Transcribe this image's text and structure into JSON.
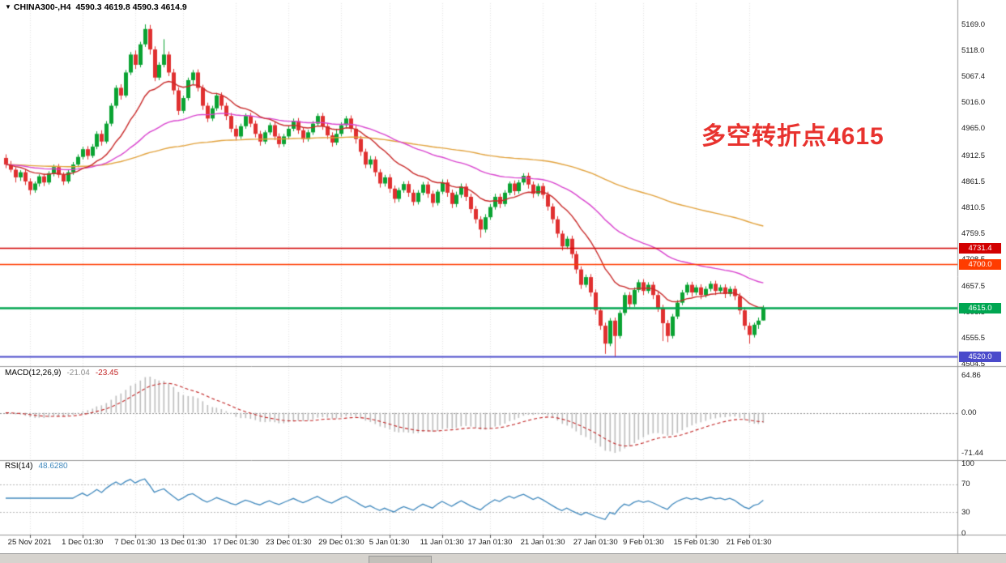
{
  "header": {
    "collapse_icon": "▼",
    "symbol": "CHINA300-,H4",
    "ohlc": "4590.3 4619.8 4590.3 4614.9"
  },
  "annotation": {
    "text": "多空转折点4615",
    "color": "#e8322e"
  },
  "panels": {
    "macd": {
      "name": "MACD(12,26,9)",
      "main_value": "-21.04",
      "signal_value": "-23.45"
    },
    "rsi": {
      "name": "RSI(14)",
      "value": "48.6280"
    }
  },
  "chart_data": {
    "type": "candlestick",
    "title": "CHINA300- H4",
    "timeframe": "H4",
    "price_axis_labels": [
      "5169.0",
      "5118.0",
      "5067.4",
      "5016.0",
      "4965.0",
      "4912.5",
      "4861.5",
      "4810.5",
      "4759.5",
      "4708.5",
      "4657.5",
      "4606.5",
      "4555.5",
      "4504.5"
    ],
    "price_range": [
      4501,
      5204
    ],
    "colors": {
      "up": "#0aa332",
      "down": "#e03030",
      "ma_fast": "#c92a2a",
      "ma_mid": "#d944cf",
      "ma_slow": "#e2a23c",
      "grid": "#e2e2e2",
      "separator": "#979797",
      "macd_hist": "#bdbdbd",
      "macd_signal": "#c22525",
      "rsi_line": "#3f88bd"
    },
    "hlines": [
      {
        "price": 4731.4,
        "label": "4731.4",
        "color": "#d20000",
        "width": 1.4
      },
      {
        "price": 4700.0,
        "label": "4700.0",
        "color": "#ff3c00",
        "width": 1.4
      },
      {
        "price": 4615.0,
        "label": "4615.0",
        "color": "#00a651",
        "width": 2.4
      },
      {
        "price": 4520.0,
        "label": "4520.0",
        "color": "#4a4acb",
        "width": 2.0
      }
    ],
    "moving_averages": [
      {
        "period": 140,
        "color_key": "ma_slow"
      },
      {
        "period": 48,
        "color_key": "ma_mid"
      },
      {
        "period": 16,
        "color_key": "ma_fast"
      }
    ],
    "macd": {
      "fast": 12,
      "slow": 26,
      "signal": 9,
      "display_main": -21.04,
      "display_signal": -23.45,
      "range": [
        -80,
        76
      ],
      "axis": [
        {
          "t": "64.86",
          "v": 64.86
        },
        {
          "t": "0.00",
          "v": 0
        },
        {
          "t": "-71.44",
          "v": -71.44
        }
      ]
    },
    "rsi": {
      "period": 14,
      "display_value": 48.628,
      "range": [
        0,
        100
      ],
      "levels": [
        70,
        30
      ],
      "axis": [
        {
          "t": "100",
          "v": 100
        },
        {
          "t": "70",
          "v": 70
        },
        {
          "t": "30",
          "v": 30
        },
        {
          "t": "0",
          "v": 0
        }
      ]
    },
    "x_ticks": [
      {
        "label": "25 Nov 2021",
        "bar": 5
      },
      {
        "label": "1 Dec 01:30",
        "bar": 16
      },
      {
        "label": "7 Dec 01:30",
        "bar": 27
      },
      {
        "label": "13 Dec 01:30",
        "bar": 37
      },
      {
        "label": "17 Dec 01:30",
        "bar": 48
      },
      {
        "label": "23 Dec 01:30",
        "bar": 59
      },
      {
        "label": "29 Dec 01:30",
        "bar": 70
      },
      {
        "label": "5 Jan 01:30",
        "bar": 80
      },
      {
        "label": "11 Jan 01:30",
        "bar": 91
      },
      {
        "label": "17 Jan 01:30",
        "bar": 101
      },
      {
        "label": "21 Jan 01:30",
        "bar": 112
      },
      {
        "label": "27 Jan 01:30",
        "bar": 123
      },
      {
        "label": "9 Feb 01:30",
        "bar": 133
      },
      {
        "label": "15 Feb 01:30",
        "bar": 144
      },
      {
        "label": "21 Feb 01:30",
        "bar": 155
      }
    ],
    "candles": [
      [
        4908,
        4915,
        4888,
        4895
      ],
      [
        4895,
        4902,
        4880,
        4885
      ],
      [
        4885,
        4890,
        4860,
        4870
      ],
      [
        4870,
        4884,
        4863,
        4880
      ],
      [
        4880,
        4886,
        4855,
        4862
      ],
      [
        4862,
        4868,
        4836,
        4845
      ],
      [
        4845,
        4862,
        4840,
        4858
      ],
      [
        4858,
        4876,
        4852,
        4872
      ],
      [
        4872,
        4877,
        4853,
        4860
      ],
      [
        4860,
        4882,
        4856,
        4878
      ],
      [
        4878,
        4895,
        4872,
        4890
      ],
      [
        4890,
        4896,
        4869,
        4875
      ],
      [
        4875,
        4880,
        4855,
        4862
      ],
      [
        4862,
        4885,
        4858,
        4880
      ],
      [
        4880,
        4900,
        4875,
        4895
      ],
      [
        4895,
        4915,
        4890,
        4910
      ],
      [
        4910,
        4930,
        4905,
        4925
      ],
      [
        4925,
        4931,
        4905,
        4912
      ],
      [
        4912,
        4935,
        4908,
        4930
      ],
      [
        4930,
        4960,
        4925,
        4955
      ],
      [
        4955,
        4962,
        4932,
        4940
      ],
      [
        4940,
        4980,
        4936,
        4975
      ],
      [
        4975,
        5015,
        4970,
        5010
      ],
      [
        5010,
        5050,
        5005,
        5045
      ],
      [
        5045,
        5052,
        5022,
        5030
      ],
      [
        5030,
        5080,
        5026,
        5075
      ],
      [
        5075,
        5115,
        5070,
        5110
      ],
      [
        5110,
        5118,
        5082,
        5090
      ],
      [
        5090,
        5135,
        5085,
        5130
      ],
      [
        5130,
        5169,
        5125,
        5160
      ],
      [
        5160,
        5168,
        5110,
        5120
      ],
      [
        5120,
        5126,
        5058,
        5065
      ],
      [
        5065,
        5095,
        5060,
        5090
      ],
      [
        5090,
        5140,
        5085,
        5110
      ],
      [
        5110,
        5116,
        5068,
        5075
      ],
      [
        5075,
        5082,
        5032,
        5040
      ],
      [
        5040,
        5046,
        4992,
        5000
      ],
      [
        5000,
        5030,
        4995,
        5025
      ],
      [
        5025,
        5065,
        5020,
        5060
      ],
      [
        5060,
        5080,
        5052,
        5075
      ],
      [
        5075,
        5081,
        5038,
        5045
      ],
      [
        5045,
        5051,
        5002,
        5010
      ],
      [
        5010,
        5016,
        4978,
        4985
      ],
      [
        4985,
        5010,
        4980,
        5005
      ],
      [
        5005,
        5035,
        5000,
        5030
      ],
      [
        5030,
        5036,
        5002,
        5010
      ],
      [
        5010,
        5016,
        4982,
        4990
      ],
      [
        4990,
        4996,
        4958,
        4965
      ],
      [
        4965,
        4972,
        4942,
        4950
      ],
      [
        4950,
        4975,
        4945,
        4970
      ],
      [
        4970,
        4995,
        4965,
        4990
      ],
      [
        4990,
        4996,
        4968,
        4975
      ],
      [
        4975,
        4981,
        4948,
        4955
      ],
      [
        4955,
        4961,
        4932,
        4940
      ],
      [
        4940,
        4962,
        4935,
        4958
      ],
      [
        4958,
        4977,
        4953,
        4972
      ],
      [
        4972,
        4978,
        4943,
        4950
      ],
      [
        4950,
        4956,
        4928,
        4935
      ],
      [
        4935,
        4955,
        4930,
        4950
      ],
      [
        4950,
        4970,
        4945,
        4965
      ],
      [
        4965,
        4985,
        4960,
        4980
      ],
      [
        4980,
        4986,
        4955,
        4962
      ],
      [
        4962,
        4968,
        4938,
        4945
      ],
      [
        4945,
        4963,
        4940,
        4958
      ],
      [
        4958,
        4980,
        4953,
        4975
      ],
      [
        4975,
        4995,
        4970,
        4990
      ],
      [
        4990,
        4996,
        4963,
        4970
      ],
      [
        4970,
        4976,
        4945,
        4952
      ],
      [
        4952,
        4958,
        4930,
        4938
      ],
      [
        4938,
        4965,
        4933,
        4955
      ],
      [
        4955,
        4978,
        4950,
        4972
      ],
      [
        4972,
        4990,
        4966,
        4985
      ],
      [
        4985,
        4991,
        4958,
        4965
      ],
      [
        4965,
        4971,
        4936,
        4945
      ],
      [
        4945,
        4951,
        4912,
        4920
      ],
      [
        4920,
        4926,
        4888,
        4895
      ],
      [
        4895,
        4912,
        4888,
        4905
      ],
      [
        4905,
        4911,
        4872,
        4880
      ],
      [
        4880,
        4886,
        4850,
        4858
      ],
      [
        4858,
        4875,
        4852,
        4870
      ],
      [
        4870,
        4876,
        4840,
        4848
      ],
      [
        4848,
        4854,
        4820,
        4828
      ],
      [
        4828,
        4850,
        4822,
        4845
      ],
      [
        4845,
        4862,
        4840,
        4857
      ],
      [
        4857,
        4863,
        4832,
        4840
      ],
      [
        4840,
        4846,
        4815,
        4822
      ],
      [
        4822,
        4845,
        4817,
        4840
      ],
      [
        4840,
        4861,
        4835,
        4856
      ],
      [
        4856,
        4862,
        4830,
        4838
      ],
      [
        4838,
        4844,
        4812,
        4820
      ],
      [
        4820,
        4846,
        4815,
        4842
      ],
      [
        4842,
        4866,
        4837,
        4860
      ],
      [
        4860,
        4866,
        4832,
        4840
      ],
      [
        4840,
        4846,
        4810,
        4818
      ],
      [
        4818,
        4842,
        4812,
        4836
      ],
      [
        4836,
        4858,
        4830,
        4852
      ],
      [
        4852,
        4858,
        4824,
        4832
      ],
      [
        4832,
        4838,
        4800,
        4808
      ],
      [
        4808,
        4814,
        4780,
        4788
      ],
      [
        4788,
        4794,
        4752,
        4768
      ],
      [
        4768,
        4798,
        4762,
        4792
      ],
      [
        4792,
        4818,
        4787,
        4812
      ],
      [
        4812,
        4838,
        4807,
        4832
      ],
      [
        4832,
        4838,
        4810,
        4818
      ],
      [
        4818,
        4845,
        4813,
        4840
      ],
      [
        4840,
        4862,
        4835,
        4858
      ],
      [
        4858,
        4864,
        4835,
        4843
      ],
      [
        4843,
        4865,
        4838,
        4860
      ],
      [
        4860,
        4878,
        4855,
        4873
      ],
      [
        4873,
        4879,
        4848,
        4856
      ],
      [
        4856,
        4862,
        4830,
        4838
      ],
      [
        4838,
        4858,
        4833,
        4853
      ],
      [
        4853,
        4859,
        4828,
        4836
      ],
      [
        4836,
        4842,
        4805,
        4813
      ],
      [
        4813,
        4819,
        4780,
        4788
      ],
      [
        4788,
        4794,
        4752,
        4760
      ],
      [
        4760,
        4766,
        4727,
        4735
      ],
      [
        4735,
        4755,
        4730,
        4750
      ],
      [
        4750,
        4756,
        4712,
        4720
      ],
      [
        4720,
        4726,
        4682,
        4690
      ],
      [
        4690,
        4696,
        4652,
        4660
      ],
      [
        4660,
        4680,
        4655,
        4675
      ],
      [
        4675,
        4681,
        4637,
        4645
      ],
      [
        4645,
        4651,
        4602,
        4610
      ],
      [
        4610,
        4616,
        4572,
        4580
      ],
      [
        4580,
        4586,
        4525,
        4545
      ],
      [
        4545,
        4595,
        4540,
        4590
      ],
      [
        4590,
        4596,
        4520,
        4560
      ],
      [
        4560,
        4610,
        4555,
        4605
      ],
      [
        4605,
        4645,
        4600,
        4640
      ],
      [
        4640,
        4646,
        4615,
        4622
      ],
      [
        4622,
        4655,
        4617,
        4650
      ],
      [
        4650,
        4670,
        4645,
        4665
      ],
      [
        4665,
        4671,
        4640,
        4648
      ],
      [
        4648,
        4665,
        4643,
        4660
      ],
      [
        4660,
        4666,
        4632,
        4640
      ],
      [
        4640,
        4646,
        4607,
        4615
      ],
      [
        4615,
        4621,
        4550,
        4585
      ],
      [
        4585,
        4591,
        4548,
        4560
      ],
      [
        4560,
        4603,
        4555,
        4598
      ],
      [
        4598,
        4630,
        4593,
        4625
      ],
      [
        4625,
        4650,
        4620,
        4645
      ],
      [
        4645,
        4665,
        4640,
        4660
      ],
      [
        4660,
        4666,
        4637,
        4645
      ],
      [
        4645,
        4660,
        4640,
        4655
      ],
      [
        4655,
        4661,
        4632,
        4640
      ],
      [
        4640,
        4657,
        4635,
        4652
      ],
      [
        4652,
        4667,
        4647,
        4662
      ],
      [
        4662,
        4668,
        4640,
        4648
      ],
      [
        4648,
        4660,
        4643,
        4655
      ],
      [
        4655,
        4661,
        4634,
        4642
      ],
      [
        4642,
        4657,
        4637,
        4652
      ],
      [
        4652,
        4658,
        4630,
        4638
      ],
      [
        4638,
        4644,
        4602,
        4610
      ],
      [
        4610,
        4616,
        4572,
        4580
      ],
      [
        4580,
        4586,
        4545,
        4562
      ],
      [
        4562,
        4586,
        4557,
        4582
      ],
      [
        4582,
        4596,
        4574,
        4590
      ],
      [
        4590.3,
        4619.8,
        4590.3,
        4614.9
      ]
    ]
  }
}
